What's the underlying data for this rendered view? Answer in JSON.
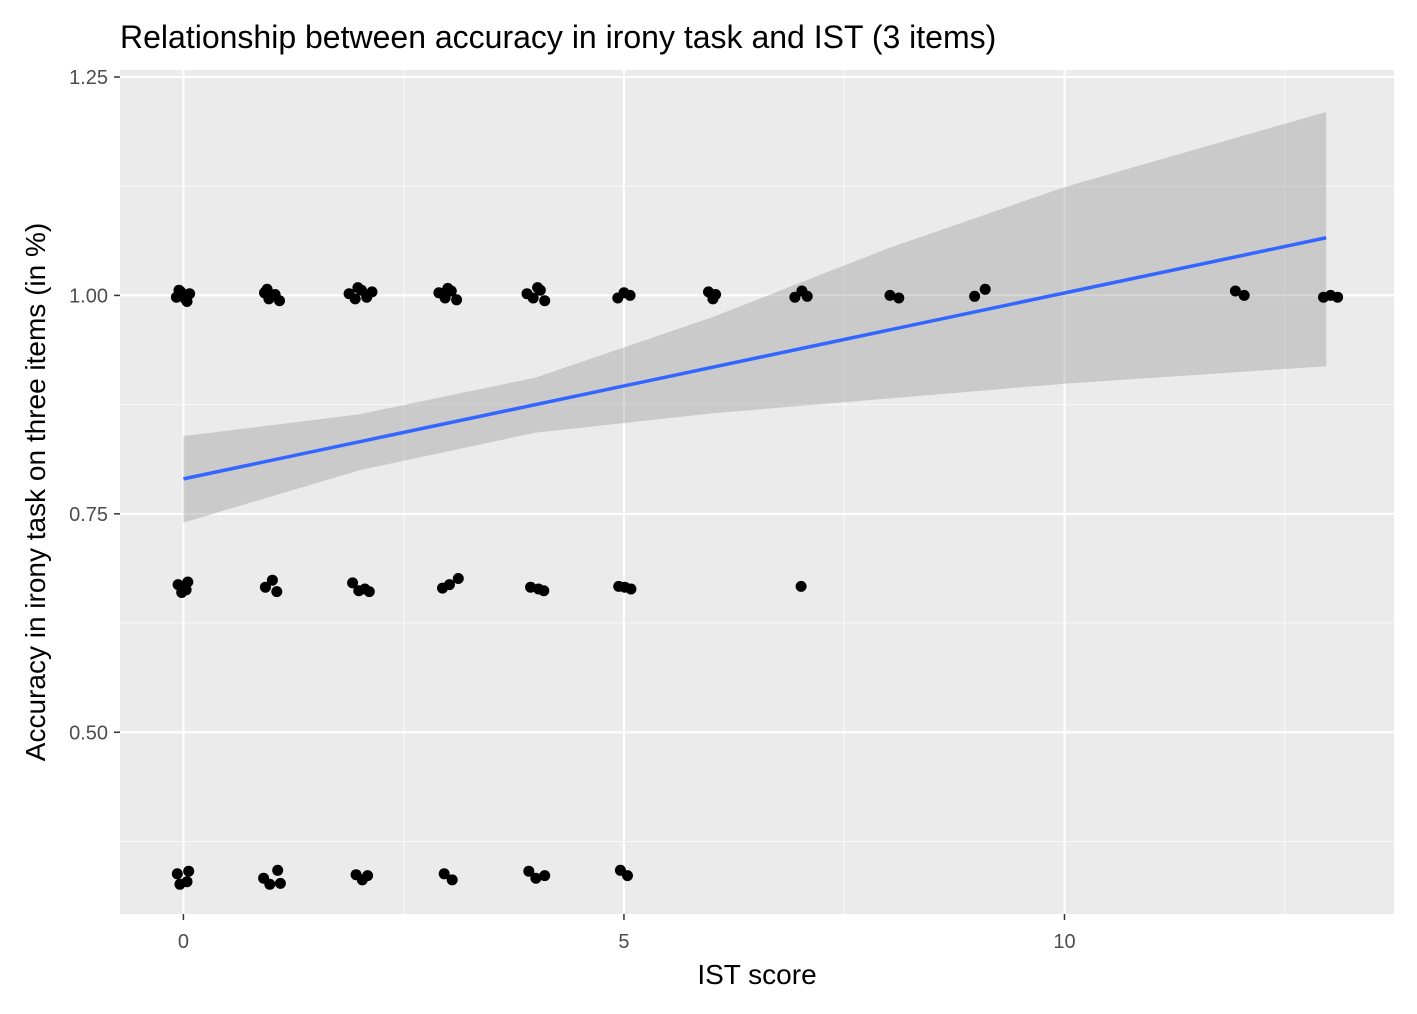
{
  "chart_data": {
    "type": "scatter",
    "title": "Relationship between accuracy in irony task and IST (3 items)",
    "xlabel": "IST score",
    "ylabel": "Accuracy in irony task on three items (in %)",
    "xlim": [
      -0.72,
      13.74
    ],
    "ylim": [
      0.292,
      1.258
    ],
    "x_ticks": [
      0,
      5,
      10
    ],
    "x_tick_labels": [
      "0",
      "5",
      "10"
    ],
    "y_ticks": [
      0.5,
      0.75,
      1.0,
      1.25
    ],
    "y_tick_labels": [
      "0.50",
      "0.75",
      "1.00",
      "1.25"
    ],
    "grid": true,
    "legend": "none",
    "colors": {
      "panel": "#ebebeb",
      "grid": "#ffffff",
      "point": "#000000",
      "line": "#3366ff",
      "ribbon": "#999999"
    },
    "points": [
      {
        "x": -0.08,
        "y": 0.998
      },
      {
        "x": -0.03,
        "y": 1.004
      },
      {
        "x": 0.02,
        "y": 0.996
      },
      {
        "x": 0.07,
        "y": 1.002
      },
      {
        "x": 0.04,
        "y": 0.993
      },
      {
        "x": -0.05,
        "y": 1.006
      },
      {
        "x": -0.06,
        "y": 0.669
      },
      {
        "x": 0.03,
        "y": 0.663
      },
      {
        "x": 0.05,
        "y": 0.672
      },
      {
        "x": -0.02,
        "y": 0.66
      },
      {
        "x": -0.07,
        "y": 0.338
      },
      {
        "x": 0.04,
        "y": 0.329
      },
      {
        "x": 0.06,
        "y": 0.341
      },
      {
        "x": -0.04,
        "y": 0.326
      },
      {
        "x": 0.92,
        "y": 1.003
      },
      {
        "x": 0.97,
        "y": 0.996
      },
      {
        "x": 1.04,
        "y": 1.001
      },
      {
        "x": 1.09,
        "y": 0.994
      },
      {
        "x": 0.95,
        "y": 1.007
      },
      {
        "x": 0.93,
        "y": 0.666
      },
      {
        "x": 1.01,
        "y": 0.674
      },
      {
        "x": 1.06,
        "y": 0.661
      },
      {
        "x": 0.91,
        "y": 0.333
      },
      {
        "x": 0.98,
        "y": 0.326
      },
      {
        "x": 1.07,
        "y": 0.342
      },
      {
        "x": 1.1,
        "y": 0.327
      },
      {
        "x": 1.88,
        "y": 1.002
      },
      {
        "x": 1.95,
        "y": 0.996
      },
      {
        "x": 2.02,
        "y": 1.006
      },
      {
        "x": 2.08,
        "y": 0.998
      },
      {
        "x": 2.14,
        "y": 1.004
      },
      {
        "x": 1.98,
        "y": 1.009
      },
      {
        "x": 1.92,
        "y": 0.671
      },
      {
        "x": 1.99,
        "y": 0.662
      },
      {
        "x": 2.06,
        "y": 0.664
      },
      {
        "x": 2.11,
        "y": 0.661
      },
      {
        "x": 1.96,
        "y": 0.337
      },
      {
        "x": 2.03,
        "y": 0.331
      },
      {
        "x": 2.09,
        "y": 0.336
      },
      {
        "x": 2.9,
        "y": 1.003
      },
      {
        "x": 2.97,
        "y": 0.997
      },
      {
        "x": 3.04,
        "y": 1.005
      },
      {
        "x": 3.1,
        "y": 0.995
      },
      {
        "x": 3.0,
        "y": 1.008
      },
      {
        "x": 2.94,
        "y": 0.665
      },
      {
        "x": 3.02,
        "y": 0.669
      },
      {
        "x": 3.12,
        "y": 0.676
      },
      {
        "x": 2.96,
        "y": 0.338
      },
      {
        "x": 3.05,
        "y": 0.331
      },
      {
        "x": 3.9,
        "y": 1.002
      },
      {
        "x": 3.97,
        "y": 0.997
      },
      {
        "x": 4.05,
        "y": 1.006
      },
      {
        "x": 4.1,
        "y": 0.994
      },
      {
        "x": 4.02,
        "y": 1.009
      },
      {
        "x": 3.94,
        "y": 0.666
      },
      {
        "x": 4.03,
        "y": 0.664
      },
      {
        "x": 4.09,
        "y": 0.662
      },
      {
        "x": 3.92,
        "y": 0.341
      },
      {
        "x": 4.0,
        "y": 0.333
      },
      {
        "x": 4.1,
        "y": 0.336
      },
      {
        "x": 4.93,
        "y": 0.997
      },
      {
        "x": 5.0,
        "y": 1.003
      },
      {
        "x": 5.07,
        "y": 1.0
      },
      {
        "x": 4.94,
        "y": 0.667
      },
      {
        "x": 5.01,
        "y": 0.666
      },
      {
        "x": 5.08,
        "y": 0.664
      },
      {
        "x": 4.96,
        "y": 0.342
      },
      {
        "x": 5.04,
        "y": 0.336
      },
      {
        "x": 5.96,
        "y": 1.004
      },
      {
        "x": 6.01,
        "y": 0.996
      },
      {
        "x": 6.04,
        "y": 1.001
      },
      {
        "x": 6.94,
        "y": 0.998
      },
      {
        "x": 7.02,
        "y": 1.005
      },
      {
        "x": 7.08,
        "y": 0.999
      },
      {
        "x": 7.01,
        "y": 0.667
      },
      {
        "x": 8.02,
        "y": 1.0
      },
      {
        "x": 8.12,
        "y": 0.997
      },
      {
        "x": 8.98,
        "y": 0.999
      },
      {
        "x": 9.1,
        "y": 1.007
      },
      {
        "x": 11.94,
        "y": 1.005
      },
      {
        "x": 12.04,
        "y": 1.0
      },
      {
        "x": 12.94,
        "y": 0.998
      },
      {
        "x": 13.02,
        "y": 1.0
      },
      {
        "x": 13.1,
        "y": 0.998
      }
    ],
    "fit_line": {
      "x": [
        0,
        12.97
      ],
      "y": [
        0.79,
        1.066
      ]
    },
    "confidence_band": [
      {
        "x": 0,
        "lower": 0.74,
        "upper": 0.839
      },
      {
        "x": 2,
        "lower": 0.8,
        "upper": 0.864
      },
      {
        "x": 4,
        "lower": 0.843,
        "upper": 0.906
      },
      {
        "x": 6,
        "lower": 0.865,
        "upper": 0.975
      },
      {
        "x": 8,
        "lower": 0.882,
        "upper": 1.054
      },
      {
        "x": 10,
        "lower": 0.899,
        "upper": 1.124
      },
      {
        "x": 12.97,
        "lower": 0.919,
        "upper": 1.21
      }
    ]
  }
}
